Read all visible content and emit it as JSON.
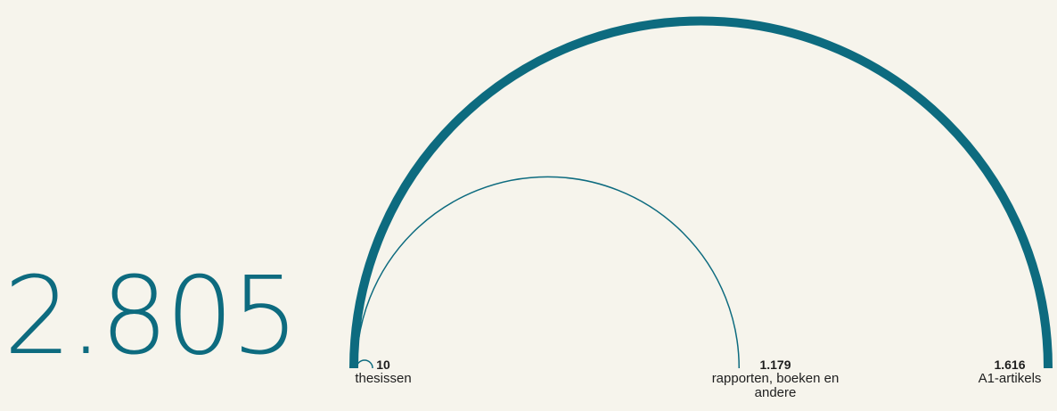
{
  "total": "2.805",
  "colors": {
    "background": "#f6f4ec",
    "arc": "#0d6b7f",
    "text": "#1e1e1e"
  },
  "chart_data": {
    "type": "arc",
    "total": 2805,
    "series": [
      {
        "name": "thesissen",
        "value": 10,
        "value_label": "10"
      },
      {
        "name": "rapporten, boeken en andere",
        "value": 1179,
        "value_label": "1.179"
      },
      {
        "name": "A1-artikels",
        "value": 1616,
        "value_label": "1.616"
      }
    ]
  }
}
